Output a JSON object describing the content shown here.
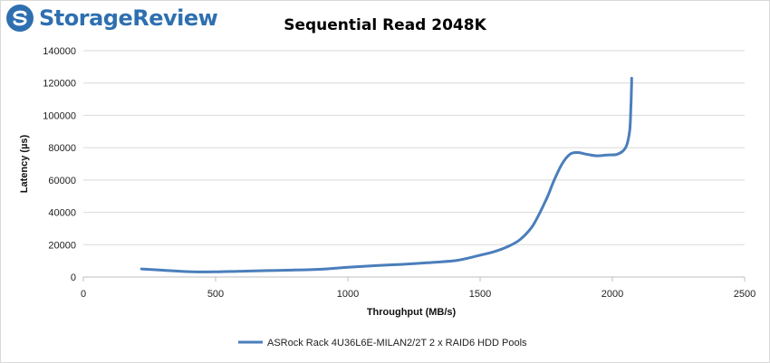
{
  "brand": {
    "name": "StorageReview",
    "color": "#2e6fb0"
  },
  "chart_data": {
    "type": "line",
    "title": "Sequential Read 2048K",
    "xlabel": "Throughput (MB/s)",
    "ylabel": "Latency (µs)",
    "xlim": [
      0,
      2500
    ],
    "ylim": [
      0,
      140000
    ],
    "xticks": [
      "0",
      "500",
      "1000",
      "1500",
      "2000",
      "2500"
    ],
    "yticks": [
      "0",
      "20000",
      "40000",
      "60000",
      "80000",
      "100000",
      "120000",
      "140000"
    ],
    "grid": "horizontal",
    "legend_position": "bottom",
    "series": [
      {
        "name": "ASRock Rack 4U36L6E-MILAN2/2T 2 x RAID6 HDD Pools",
        "color": "#4a7ebb",
        "x": [
          220,
          300,
          400,
          500,
          600,
          700,
          800,
          900,
          1000,
          1100,
          1200,
          1300,
          1400,
          1450,
          1500,
          1550,
          1600,
          1650,
          1700,
          1750,
          1780,
          1810,
          1840,
          1870,
          1900,
          1940,
          1980,
          2020,
          2050,
          2065,
          2070,
          2072,
          2073
        ],
        "y": [
          5000,
          4200,
          3300,
          3200,
          3600,
          4000,
          4300,
          4800,
          6000,
          7000,
          7800,
          8800,
          10000,
          11500,
          13500,
          15500,
          18500,
          23000,
          32000,
          48000,
          60000,
          70000,
          76000,
          77000,
          76000,
          75000,
          75500,
          76000,
          80000,
          90000,
          105000,
          115000,
          123000
        ]
      }
    ]
  }
}
